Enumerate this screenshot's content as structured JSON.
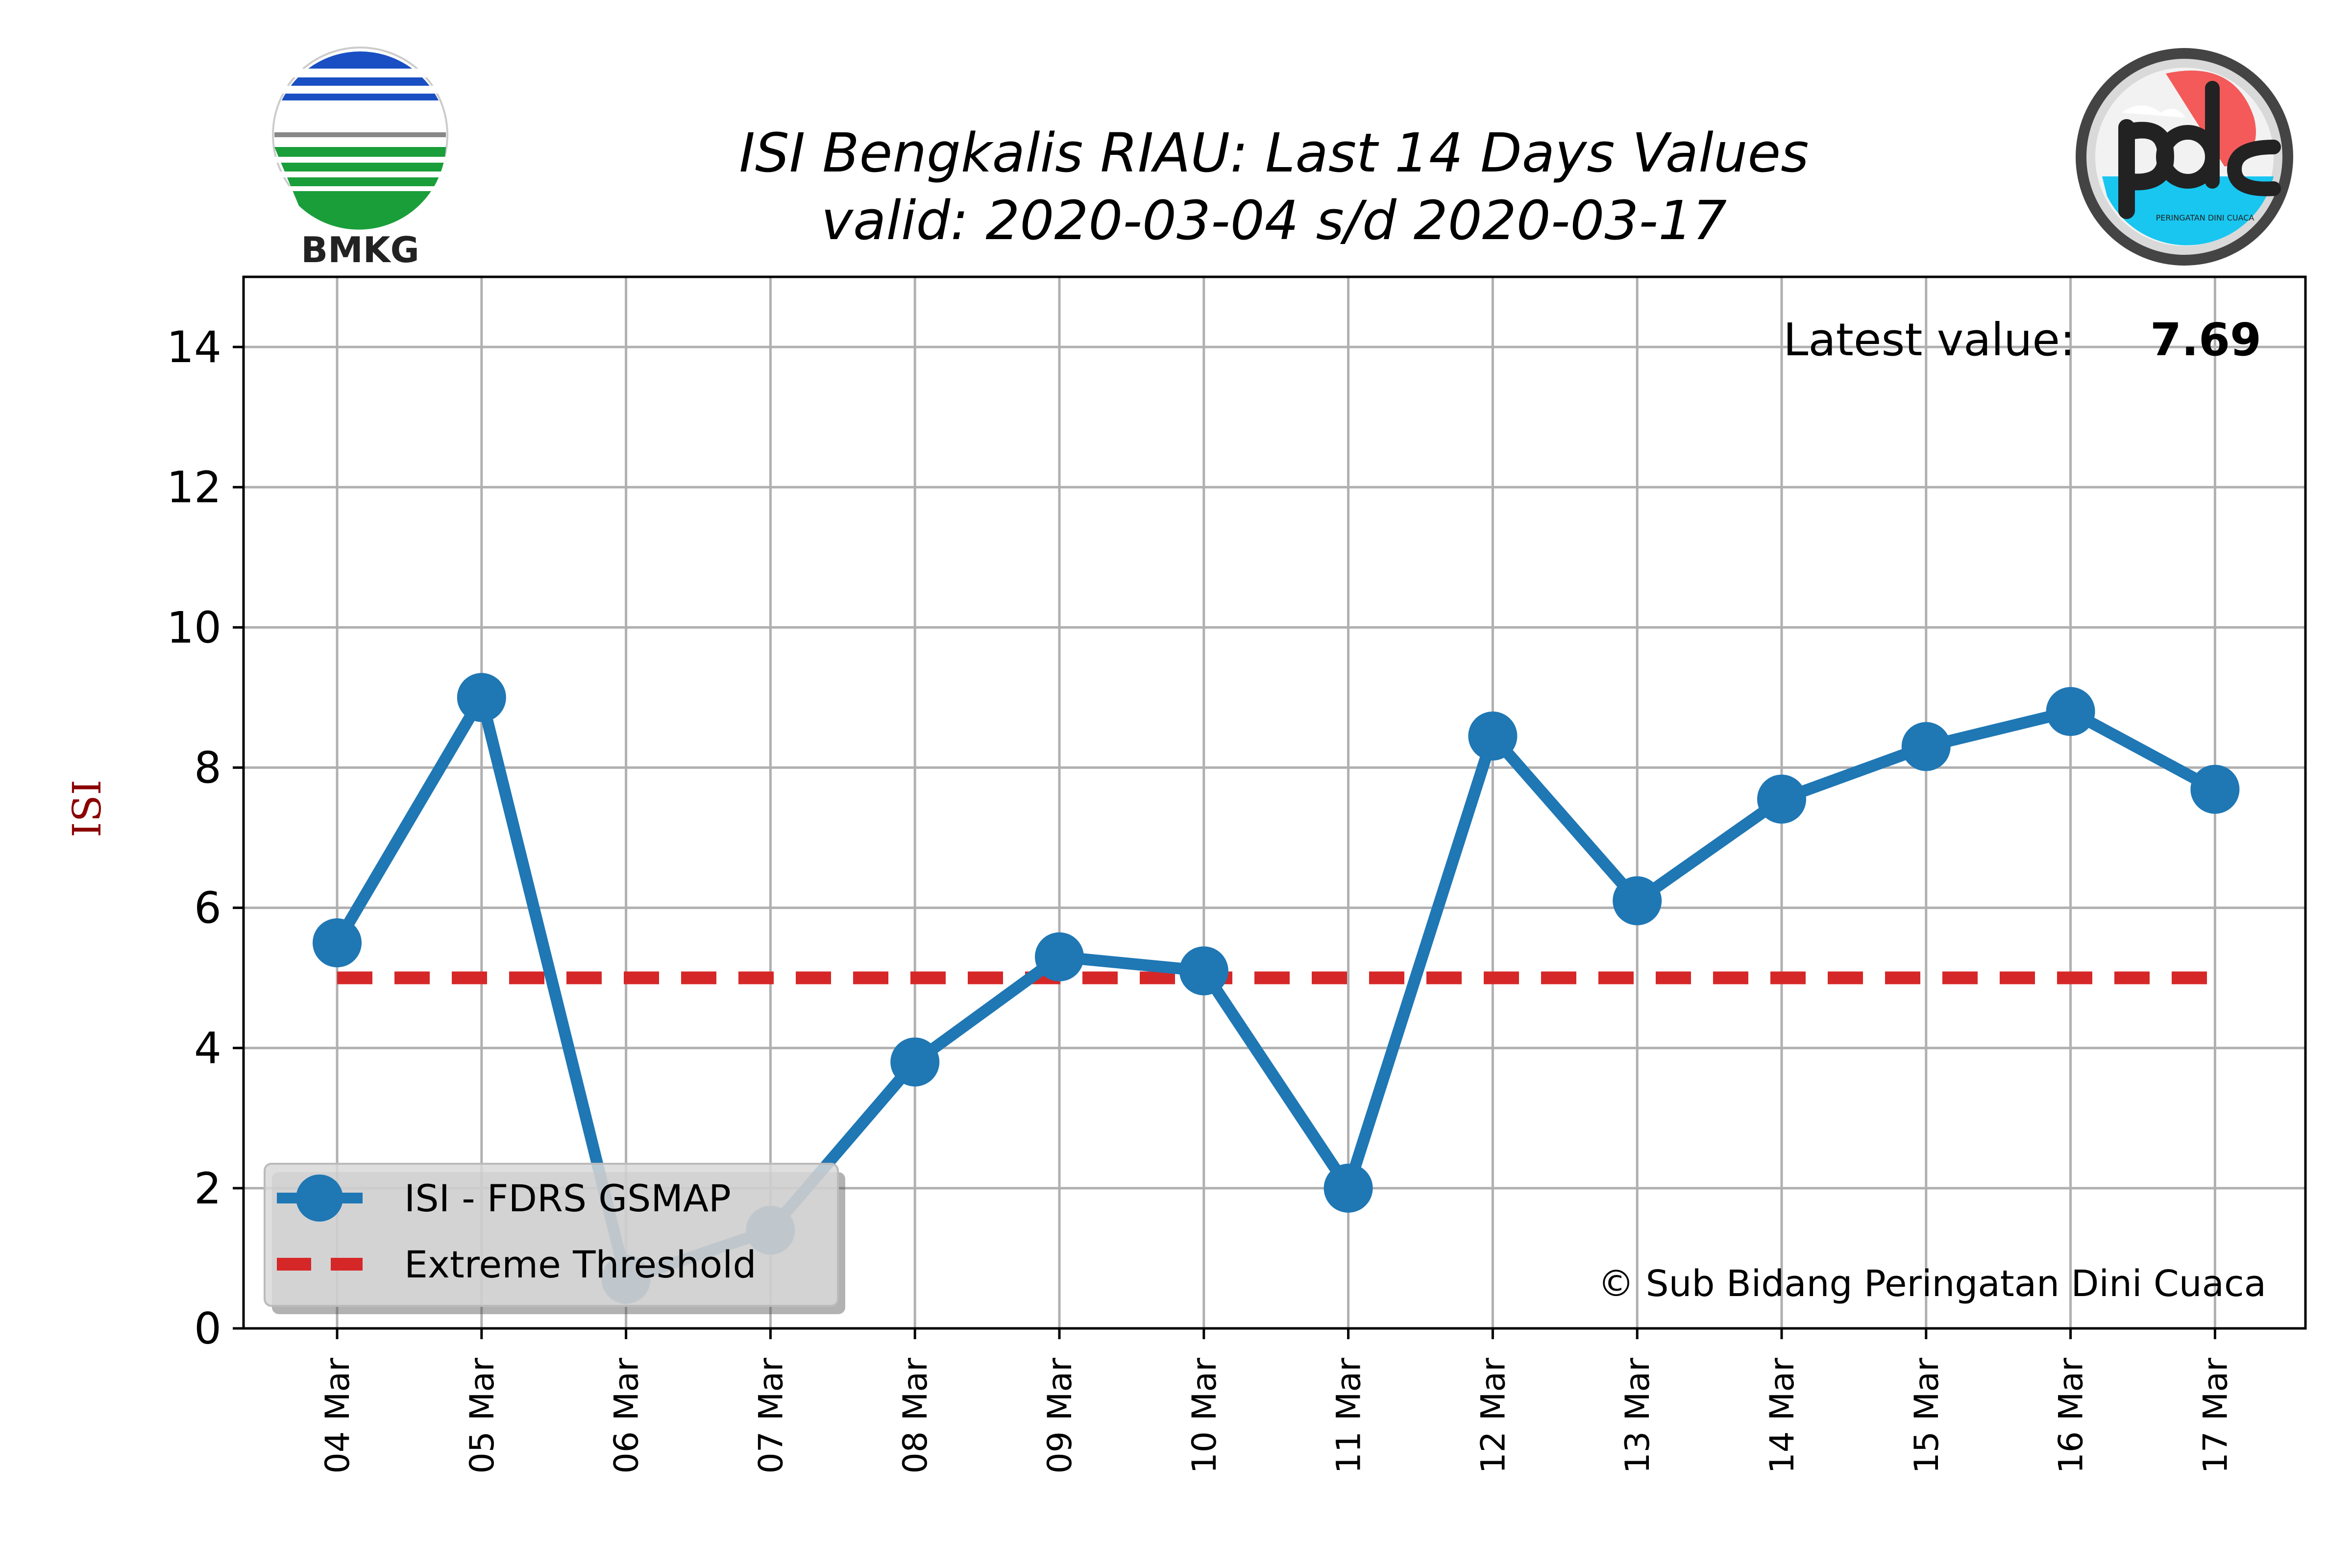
{
  "chart_data": {
    "type": "line",
    "title": "ISI Bengkalis RIAU: Last 14 Days Values",
    "subtitle": "valid: 2020-03-04 s/d 2020-03-17",
    "ylabel": "ISI",
    "xlabel": "",
    "ylim": [
      0,
      15
    ],
    "yticks": [
      0,
      2,
      4,
      6,
      8,
      10,
      12,
      14
    ],
    "grid": true,
    "legend_placement": "lower-left",
    "categories": [
      "04 Mar",
      "05 Mar",
      "06 Mar",
      "07 Mar",
      "08 Mar",
      "09 Mar",
      "10 Mar",
      "11 Mar",
      "12 Mar",
      "13 Mar",
      "14 Mar",
      "15 Mar",
      "16 Mar",
      "17 Mar"
    ],
    "series": [
      {
        "name": "ISI - FDRS GSMAP",
        "values": [
          5.5,
          9.0,
          0.7,
          1.4,
          3.8,
          5.3,
          5.1,
          2.0,
          8.45,
          6.1,
          7.55,
          8.3,
          8.8,
          7.69
        ],
        "color": "#1f77b4",
        "style": "line-marker"
      },
      {
        "name": "Extreme Threshold",
        "values": [
          5,
          5,
          5,
          5,
          5,
          5,
          5,
          5,
          5,
          5,
          5,
          5,
          5,
          5
        ],
        "color": "#d62728",
        "style": "dashed"
      }
    ],
    "annotations": {
      "latest_label": "Latest value:",
      "latest_value": "7.69",
      "copyright": "© Sub Bidang Peringatan Dini Cuaca"
    }
  },
  "logos": {
    "left": {
      "icon": "bmkg-logo",
      "text": "BMKG"
    },
    "right": {
      "icon": "pdc-logo",
      "text": "PERINGATAN DINI CUACA"
    }
  },
  "colors": {
    "isi_line": "#1f77b4",
    "threshold": "#d62728",
    "ylabel": "#8b0000",
    "grid": "#b0b0b0"
  }
}
